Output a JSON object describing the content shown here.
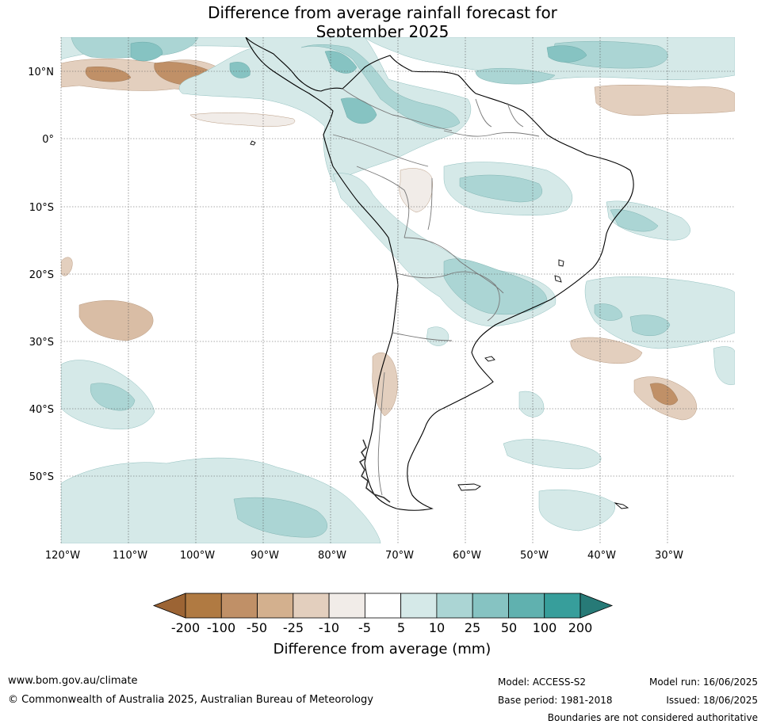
{
  "title_line1": "Difference from average rainfall forecast for",
  "title_line2": "September 2025",
  "lat_labels": [
    "10°N",
    "0°",
    "10°S",
    "20°S",
    "30°S",
    "40°S",
    "50°S"
  ],
  "lon_labels": [
    "120°W",
    "110°W",
    "100°W",
    "90°W",
    "80°W",
    "70°W",
    "60°W",
    "50°W",
    "40°W",
    "30°W"
  ],
  "colorbar": {
    "title": "Difference from average (mm)",
    "ticks": [
      "-200",
      "-100",
      "-50",
      "-25",
      "-10",
      "-5",
      "5",
      "10",
      "25",
      "50",
      "100",
      "200"
    ],
    "colors": [
      "#9c6434",
      "#b07a42",
      "#c09067",
      "#d3b08e",
      "#e3cfbe",
      "#f1ece8",
      "#ffffff",
      "#d5e9e8",
      "#abd5d4",
      "#86c3c2",
      "#60b1af",
      "#379e9b",
      "#277a77"
    ]
  },
  "footer": {
    "website": "www.bom.gov.au/climate",
    "copyright": "© Commonwealth of Australia 2025, Australian Bureau of Meteorology",
    "model": "Model: ACCESS-S2",
    "base_period": "Base period: 1981-2018",
    "model_run": "Model run: 16/06/2025",
    "issued": "Issued: 18/06/2025",
    "disclaimer": "Boundaries are not considered authoritative"
  }
}
